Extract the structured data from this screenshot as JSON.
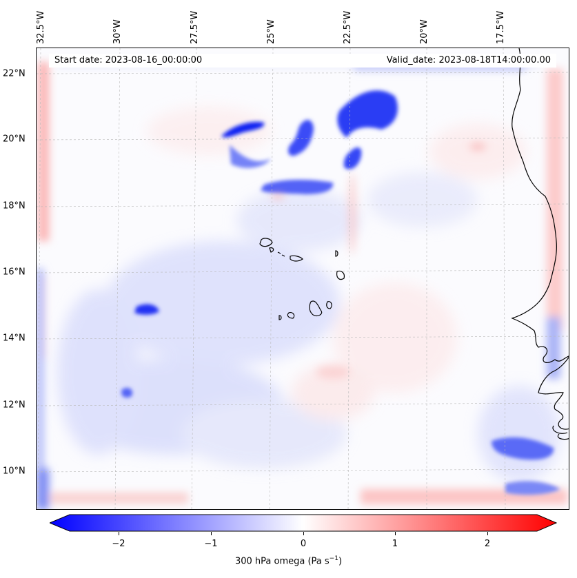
{
  "map": {
    "start_date": "Start date: 2023-08-16_00:00:00",
    "valid_date": "Valid_date: 2023-08-18T14:00:00.00",
    "lon_labels": [
      "32.5°W",
      "30°W",
      "27.5°W",
      "25°W",
      "22.5°W",
      "20°W",
      "17.5°W"
    ],
    "lat_labels": [
      "22°N",
      "20°N",
      "18°N",
      "16°N",
      "14°N",
      "12°N",
      "10°N"
    ]
  },
  "colorbar": {
    "ticks": [
      "−2",
      "−1",
      "0",
      "1",
      "2"
    ],
    "tick_values": [
      -2,
      -1,
      0,
      1,
      2
    ],
    "range": [
      -2.5,
      2.5
    ],
    "label_main": "300 hPa omega (Pa s",
    "label_exp": "−1",
    "label_end": ")",
    "colors": {
      "negative": "#0000ff",
      "zero": "#ffffff",
      "positive": "#ff0000"
    }
  }
}
